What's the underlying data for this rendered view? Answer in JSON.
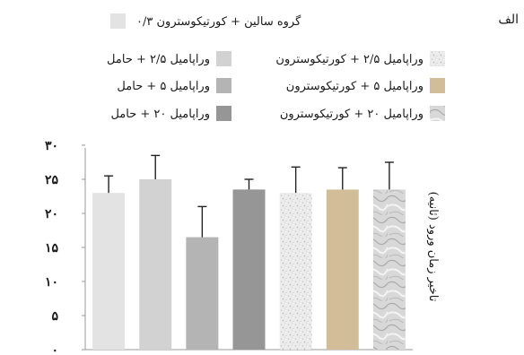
{
  "panel_label": "الف",
  "chart_data": {
    "type": "bar",
    "ylabel": "تاخیر زمان ورود (ثانیه)",
    "ylim": [
      0,
      30
    ],
    "yticks": [
      {
        "value": 0,
        "label": "۰"
      },
      {
        "value": 5,
        "label": "۵"
      },
      {
        "value": 10,
        "label": "۱۰"
      },
      {
        "value": 15,
        "label": "۱۵"
      },
      {
        "value": 20,
        "label": "۲۰"
      },
      {
        "value": 25,
        "label": "۲۵"
      },
      {
        "value": 30,
        "label": "۳۰"
      }
    ],
    "grid": false,
    "series": [
      {
        "name": "گروه سالین + کورتیکوسترون ۰/۳",
        "value": 23.0,
        "error": 2.5,
        "color": "#e3e3e3",
        "pattern": "solid"
      },
      {
        "name": "وراپامیل ۲/۵ + حامل",
        "value": 25.0,
        "error": 3.5,
        "color": "#d2d2d2",
        "pattern": "solid"
      },
      {
        "name": "وراپامیل ۵ + حامل",
        "value": 16.5,
        "error": 4.5,
        "color": "#b4b4b4",
        "pattern": "solid"
      },
      {
        "name": "وراپامیل ۲۰ + حامل",
        "value": 23.5,
        "error": 1.5,
        "color": "#969696",
        "pattern": "solid"
      },
      {
        "name": "وراپامیل ۲/۵ + کورتیکوسترون",
        "value": 23.0,
        "error": 3.8,
        "color": "#e8e8e8",
        "pattern": "speckle"
      },
      {
        "name": "وراپامیل ۵ + کورتیکوسترون",
        "value": 23.5,
        "error": 3.2,
        "color": "#d9c7a8",
        "pattern": "burlap"
      },
      {
        "name": "وراپامیل ۲۰ + کورتیکوسترون",
        "value": 23.5,
        "error": 4.0,
        "color": "#cfcfcf",
        "pattern": "marble"
      }
    ]
  }
}
